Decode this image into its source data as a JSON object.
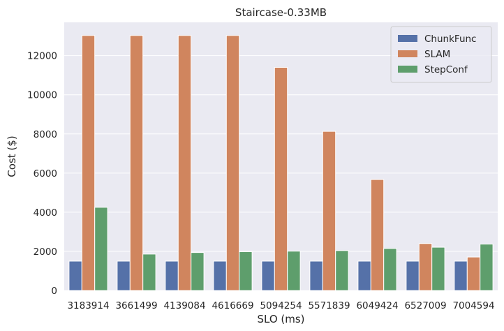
{
  "chart_data": {
    "type": "bar",
    "title": "Staircase-0.33MB",
    "xlabel": "SLO (ms)",
    "ylabel": "Cost ($)",
    "ylim": [
      0,
      13700
    ],
    "yticks": [
      0,
      2000,
      4000,
      6000,
      8000,
      10000,
      12000
    ],
    "categories": [
      "3183914",
      "3661499",
      "4139084",
      "4616669",
      "5094254",
      "5571839",
      "6049424",
      "6527009",
      "7004594"
    ],
    "series": [
      {
        "name": "ChunkFunc",
        "color": "#5571a8",
        "values": [
          1500,
          1500,
          1500,
          1500,
          1500,
          1500,
          1500,
          1500,
          1500
        ]
      },
      {
        "name": "SLAM",
        "color": "#d0855e",
        "values": [
          13030,
          13030,
          13030,
          13030,
          11400,
          8130,
          5670,
          2400,
          1710
        ]
      },
      {
        "name": "StepConf",
        "color": "#5e9e6c",
        "values": [
          4250,
          1860,
          1940,
          1980,
          2010,
          2040,
          2150,
          2210,
          2370
        ]
      }
    ],
    "grid": true,
    "legend_position": "top-right",
    "background": "#eaeaf2"
  }
}
